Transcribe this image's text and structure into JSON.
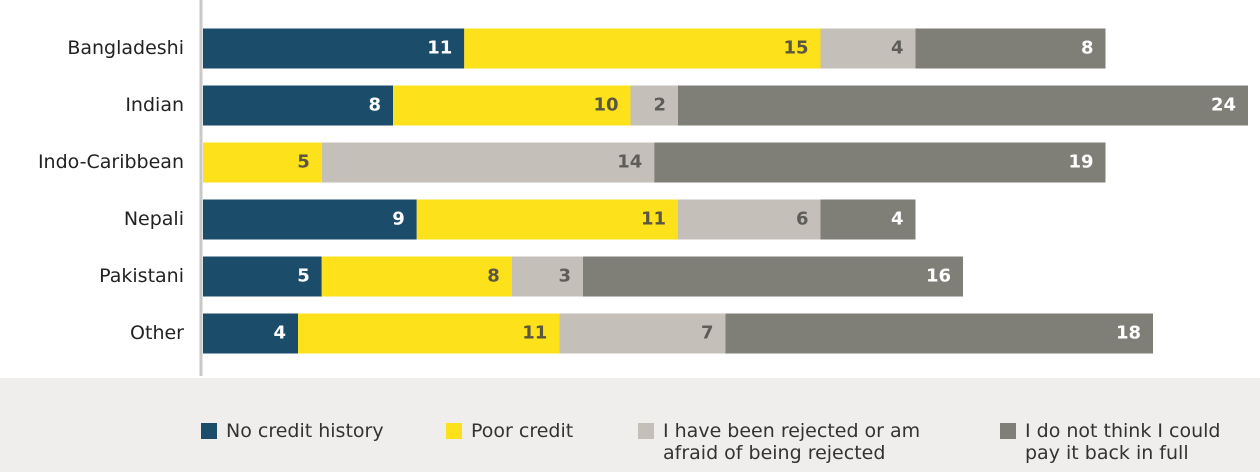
{
  "chart_data": {
    "type": "stacked-bar-horizontal",
    "categories": [
      "Bangladeshi",
      "Indian",
      "Indo-Caribbean",
      "Nepali",
      "Pakistani",
      "Other"
    ],
    "series": [
      {
        "name": "No credit history",
        "color": "#1b4d6b",
        "label_color": "#ffffff",
        "values": [
          11,
          8,
          null,
          9,
          5,
          4
        ]
      },
      {
        "name": "Poor credit",
        "color": "#fde11b",
        "label_color": "#5b5640",
        "values": [
          15,
          10,
          5,
          11,
          8,
          11
        ]
      },
      {
        "name": "I have been rejected or am afraid of being rejected",
        "color": "#c4c0b9",
        "label_color": "#5f5d58",
        "values": [
          4,
          2,
          14,
          6,
          3,
          7
        ]
      },
      {
        "name": "I do not think I could pay it back in full",
        "color": "#807f77",
        "label_color": "#ffffff",
        "values": [
          8,
          24,
          19,
          4,
          16,
          18
        ]
      }
    ]
  }
}
